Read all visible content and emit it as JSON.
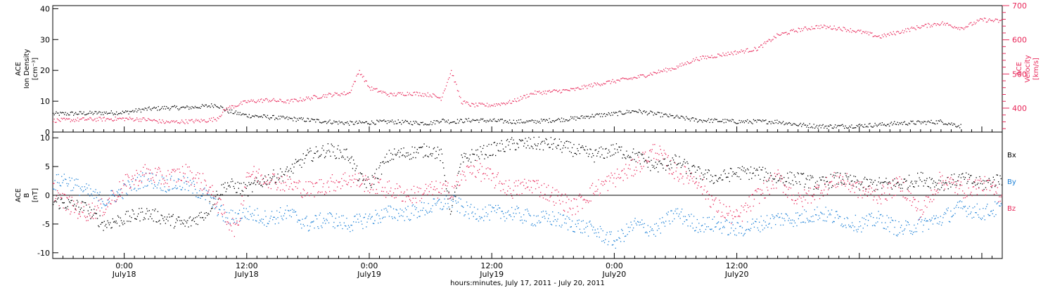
{
  "figure": {
    "xaxis_caption": "hours:minutes, July 17, 2011 - July 20, 2011",
    "time_ticks": [
      {
        "time": "0:00",
        "date": "July18"
      },
      {
        "time": "12:00",
        "date": "July18"
      },
      {
        "time": "0:00",
        "date": "July19"
      },
      {
        "time": "12:00",
        "date": "July19"
      },
      {
        "time": "0:00",
        "date": "July20"
      },
      {
        "time": "12:00",
        "date": "July20"
      }
    ]
  },
  "colors": {
    "black_series": "#000000",
    "pink_series": "#e8285a",
    "blue_series": "#1a7fd6",
    "axis": "#000000"
  },
  "chart_data": [
    {
      "type": "scatter",
      "title": "",
      "xlabel": "hours:minutes, July 17, 2011 - July 20, 2011",
      "ylabel_left": [
        "ACE",
        "Ion Density",
        "[cm⁻³]"
      ],
      "ylabel_right": [
        "ACE",
        "Velocity",
        "[km/s]"
      ],
      "x_unit": "hours since 2011-07-17 00:00",
      "xlim": [
        17,
        110
      ],
      "left_axis": {
        "ylim": [
          0,
          41
        ],
        "ticks": [
          0,
          10,
          20,
          30,
          40
        ]
      },
      "right_axis": {
        "ylim": [
          330,
          700
        ],
        "ticks": [
          400,
          500,
          600,
          700
        ]
      },
      "series": [
        {
          "name": "Ion Density",
          "axis": "left",
          "color": "#000000",
          "points": [
            [
              17,
              6
            ],
            [
              20,
              6.2
            ],
            [
              24,
              6.5
            ],
            [
              26,
              7.5
            ],
            [
              28,
              8
            ],
            [
              30,
              8
            ],
            [
              32,
              8.5
            ],
            [
              33,
              9
            ],
            [
              34,
              7
            ],
            [
              36,
              5.5
            ],
            [
              38,
              5
            ],
            [
              40,
              4.5
            ],
            [
              42,
              4
            ],
            [
              44,
              3.5
            ],
            [
              46,
              3
            ],
            [
              48,
              3.2
            ],
            [
              50,
              3.5
            ],
            [
              52,
              3.2
            ],
            [
              54,
              3
            ],
            [
              55,
              4
            ],
            [
              56,
              3.5
            ],
            [
              58,
              4
            ],
            [
              60,
              3.8
            ],
            [
              62,
              3.5
            ],
            [
              64,
              3.5
            ],
            [
              66,
              4
            ],
            [
              68,
              4.5
            ],
            [
              70,
              5.5
            ],
            [
              72,
              6
            ],
            [
              74,
              7
            ],
            [
              76,
              6
            ],
            [
              78,
              5
            ],
            [
              80,
              4
            ],
            [
              82,
              3.8
            ],
            [
              84,
              3.5
            ],
            [
              86,
              3.5
            ],
            [
              88,
              3.5
            ],
            [
              90,
              2.5
            ],
            [
              92,
              2
            ],
            [
              94,
              2
            ],
            [
              96,
              2.2
            ],
            [
              98,
              2.5
            ],
            [
              100,
              3
            ],
            [
              102,
              3.2
            ],
            [
              104,
              3.5
            ],
            [
              106,
              2
            ]
          ]
        },
        {
          "name": "Velocity",
          "axis": "right",
          "color": "#e8285a",
          "points": [
            [
              17,
              365
            ],
            [
              20,
              368
            ],
            [
              24,
              370
            ],
            [
              26,
              368
            ],
            [
              28,
              360
            ],
            [
              30,
              362
            ],
            [
              32,
              365
            ],
            [
              33,
              370
            ],
            [
              34,
              400
            ],
            [
              36,
              420
            ],
            [
              38,
              425
            ],
            [
              40,
              420
            ],
            [
              42,
              430
            ],
            [
              44,
              440
            ],
            [
              46,
              445
            ],
            [
              47,
              510
            ],
            [
              48,
              460
            ],
            [
              50,
              440
            ],
            [
              52,
              445
            ],
            [
              54,
              440
            ],
            [
              55,
              430
            ],
            [
              56,
              510
            ],
            [
              57,
              420
            ],
            [
              58,
              410
            ],
            [
              60,
              410
            ],
            [
              62,
              420
            ],
            [
              64,
              445
            ],
            [
              66,
              450
            ],
            [
              68,
              455
            ],
            [
              70,
              470
            ],
            [
              72,
              480
            ],
            [
              74,
              490
            ],
            [
              76,
              505
            ],
            [
              78,
              520
            ],
            [
              80,
              545
            ],
            [
              82,
              555
            ],
            [
              84,
              565
            ],
            [
              86,
              575
            ],
            [
              88,
              615
            ],
            [
              90,
              630
            ],
            [
              92,
              640
            ],
            [
              94,
              635
            ],
            [
              96,
              625
            ],
            [
              98,
              610
            ],
            [
              100,
              625
            ],
            [
              102,
              640
            ],
            [
              104,
              650
            ],
            [
              106,
              635
            ],
            [
              108,
              660
            ],
            [
              110,
              655
            ]
          ]
        }
      ]
    },
    {
      "type": "scatter",
      "title": "",
      "xlabel": "",
      "ylabel_left": [
        "ACE",
        "B",
        "[nT]"
      ],
      "x_unit": "hours since 2011-07-17 00:00",
      "xlim": [
        17,
        110
      ],
      "left_axis": {
        "ylim": [
          -11,
          11
        ],
        "ticks": [
          -10,
          -5,
          0,
          5,
          10
        ]
      },
      "zero_line": true,
      "legend": {
        "placement": "right",
        "entries": [
          "Bx",
          "By",
          "Bz"
        ]
      },
      "series": [
        {
          "name": "Bx",
          "color": "#000000",
          "points": [
            [
              17,
              -1
            ],
            [
              20,
              -2
            ],
            [
              22,
              -5
            ],
            [
              24,
              -4
            ],
            [
              26,
              -3
            ],
            [
              28,
              -4
            ],
            [
              30,
              -5
            ],
            [
              32,
              -3
            ],
            [
              33,
              0
            ],
            [
              34,
              2
            ],
            [
              36,
              1
            ],
            [
              38,
              3
            ],
            [
              40,
              4
            ],
            [
              42,
              7
            ],
            [
              44,
              8
            ],
            [
              46,
              7
            ],
            [
              47,
              3
            ],
            [
              48,
              2
            ],
            [
              50,
              7
            ],
            [
              52,
              7.5
            ],
            [
              54,
              8
            ],
            [
              55,
              7
            ],
            [
              56,
              -3
            ],
            [
              57,
              6
            ],
            [
              58,
              7
            ],
            [
              60,
              8
            ],
            [
              62,
              9
            ],
            [
              64,
              9
            ],
            [
              66,
              9
            ],
            [
              68,
              8
            ],
            [
              70,
              7
            ],
            [
              72,
              8
            ],
            [
              74,
              7
            ],
            [
              76,
              5
            ],
            [
              78,
              6
            ],
            [
              80,
              4
            ],
            [
              82,
              3
            ],
            [
              84,
              4
            ],
            [
              86,
              4
            ],
            [
              88,
              3
            ],
            [
              90,
              3
            ],
            [
              92,
              2
            ],
            [
              94,
              3
            ],
            [
              96,
              2
            ],
            [
              98,
              2
            ],
            [
              100,
              2
            ],
            [
              102,
              3
            ],
            [
              104,
              2
            ],
            [
              106,
              3
            ],
            [
              108,
              2
            ],
            [
              110,
              3
            ]
          ]
        },
        {
          "name": "By",
          "color": "#1a7fd6",
          "points": [
            [
              17,
              2
            ],
            [
              18,
              3
            ],
            [
              20,
              1
            ],
            [
              22,
              -1
            ],
            [
              24,
              1
            ],
            [
              26,
              3
            ],
            [
              28,
              2
            ],
            [
              30,
              2
            ],
            [
              32,
              0
            ],
            [
              34,
              -4
            ],
            [
              36,
              -3
            ],
            [
              38,
              -4
            ],
            [
              40,
              -3
            ],
            [
              42,
              -5
            ],
            [
              44,
              -4
            ],
            [
              46,
              -5
            ],
            [
              48,
              -4
            ],
            [
              50,
              -3
            ],
            [
              52,
              -3
            ],
            [
              54,
              -2
            ],
            [
              56,
              -1
            ],
            [
              58,
              -3
            ],
            [
              60,
              -3
            ],
            [
              62,
              -3
            ],
            [
              64,
              -4
            ],
            [
              66,
              -4
            ],
            [
              68,
              -5
            ],
            [
              70,
              -6
            ],
            [
              72,
              -8
            ],
            [
              74,
              -5
            ],
            [
              76,
              -6
            ],
            [
              78,
              -3
            ],
            [
              80,
              -5
            ],
            [
              82,
              -5
            ],
            [
              84,
              -6
            ],
            [
              86,
              -5
            ],
            [
              88,
              -4
            ],
            [
              90,
              -4
            ],
            [
              92,
              -3
            ],
            [
              94,
              -4
            ],
            [
              96,
              -5
            ],
            [
              98,
              -4
            ],
            [
              100,
              -6
            ],
            [
              102,
              -5
            ],
            [
              104,
              -4
            ],
            [
              106,
              -2
            ],
            [
              108,
              -3
            ],
            [
              110,
              -2
            ]
          ]
        },
        {
          "name": "Bz",
          "color": "#e8285a",
          "points": [
            [
              17,
              1
            ],
            [
              18,
              -1
            ],
            [
              20,
              -3
            ],
            [
              22,
              -2
            ],
            [
              24,
              2
            ],
            [
              26,
              4
            ],
            [
              28,
              3
            ],
            [
              30,
              4
            ],
            [
              32,
              2
            ],
            [
              34,
              -4
            ],
            [
              35,
              -6
            ],
            [
              36,
              4
            ],
            [
              38,
              3
            ],
            [
              40,
              2
            ],
            [
              42,
              1
            ],
            [
              44,
              2
            ],
            [
              46,
              3
            ],
            [
              48,
              2
            ],
            [
              50,
              1
            ],
            [
              52,
              0
            ],
            [
              54,
              1
            ],
            [
              56,
              1
            ],
            [
              58,
              5
            ],
            [
              60,
              3
            ],
            [
              62,
              1
            ],
            [
              64,
              2
            ],
            [
              66,
              0
            ],
            [
              68,
              -2
            ],
            [
              70,
              1
            ],
            [
              72,
              3
            ],
            [
              74,
              5
            ],
            [
              76,
              8
            ],
            [
              78,
              4
            ],
            [
              80,
              3
            ],
            [
              82,
              -2
            ],
            [
              84,
              -4
            ],
            [
              86,
              0
            ],
            [
              88,
              3
            ],
            [
              90,
              -1
            ],
            [
              92,
              1
            ],
            [
              94,
              3
            ],
            [
              96,
              1
            ],
            [
              98,
              0
            ],
            [
              100,
              2
            ],
            [
              102,
              -3
            ],
            [
              104,
              3
            ],
            [
              106,
              1
            ],
            [
              108,
              2
            ],
            [
              110,
              0
            ]
          ]
        }
      ]
    }
  ]
}
